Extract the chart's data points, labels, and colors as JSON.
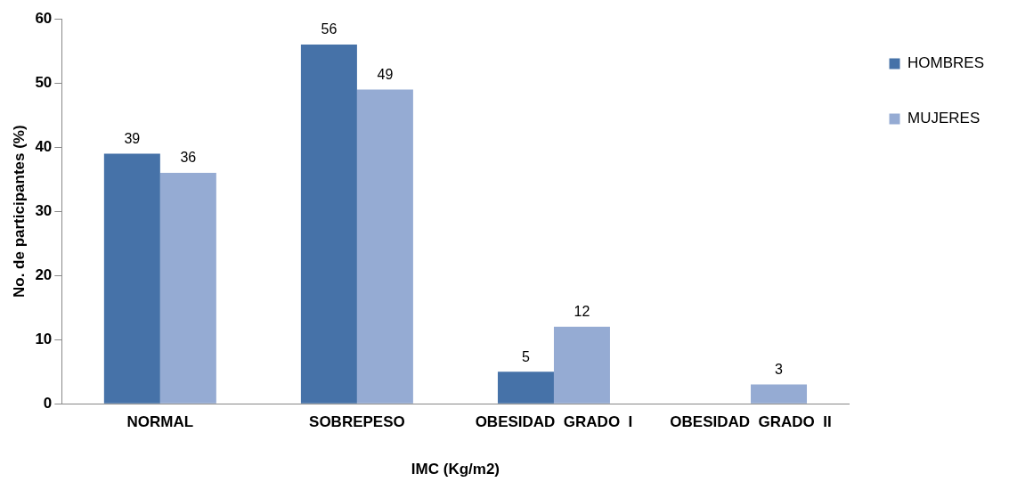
{
  "chart_data": {
    "type": "bar",
    "xlabel": "IMC (Kg/m2)",
    "ylabel": "No. de participantes (%)",
    "categories": [
      "NORMAL",
      "SOBREPESO",
      "OBESIDAD  GRADO  I",
      "OBESIDAD  GRADO  II"
    ],
    "series": [
      {
        "name": "HOMBRES",
        "color": "#4672a8",
        "values": [
          39,
          56,
          5,
          null
        ]
      },
      {
        "name": "MUJERES",
        "color": "#95abd3",
        "values": [
          36,
          49,
          12,
          3
        ]
      }
    ],
    "ylim": [
      0,
      60
    ],
    "yticks": [
      0,
      10,
      20,
      30,
      40,
      50,
      60
    ],
    "grid": false,
    "legend": "right",
    "data_labels": true
  }
}
